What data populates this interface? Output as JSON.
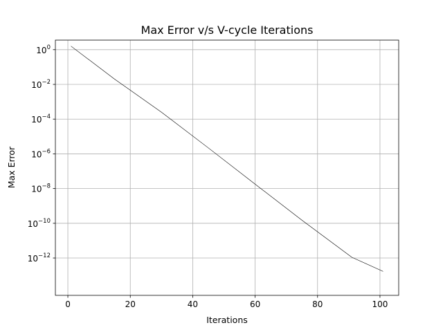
{
  "chart_data": {
    "type": "line",
    "title": "Max Error v/s V-cycle Iterations",
    "xlabel": "Iterations",
    "ylabel": "Max Error",
    "xlim": [
      -4,
      106
    ],
    "ylim_log10": [
      -14.15,
      0.55
    ],
    "yscale": "log",
    "grid": true,
    "line_color": "#000000",
    "grid_color": "#b0b0b0",
    "xticks": [
      {
        "value": 0,
        "label": "0"
      },
      {
        "value": 20,
        "label": "20"
      },
      {
        "value": 40,
        "label": "40"
      },
      {
        "value": 60,
        "label": "60"
      },
      {
        "value": 80,
        "label": "80"
      },
      {
        "value": 100,
        "label": "100"
      }
    ],
    "yticks": [
      {
        "exp": 0,
        "base": "10",
        "sup": "0"
      },
      {
        "exp": -2,
        "base": "10",
        "sup": "−2"
      },
      {
        "exp": -4,
        "base": "10",
        "sup": "−4"
      },
      {
        "exp": -6,
        "base": "10",
        "sup": "−6"
      },
      {
        "exp": -8,
        "base": "10",
        "sup": "−8"
      },
      {
        "exp": -10,
        "base": "10",
        "sup": "−10"
      },
      {
        "exp": -12,
        "base": "10",
        "sup": "−12"
      }
    ],
    "series": [
      {
        "x": [
          1,
          15,
          30,
          45,
          60,
          75,
          91,
          101
        ],
        "y": [
          1.6,
          0.02,
          0.00025,
          2.2e-06,
          1.8e-08,
          1.5e-10,
          1.1e-12,
          1.7e-13
        ]
      }
    ]
  }
}
